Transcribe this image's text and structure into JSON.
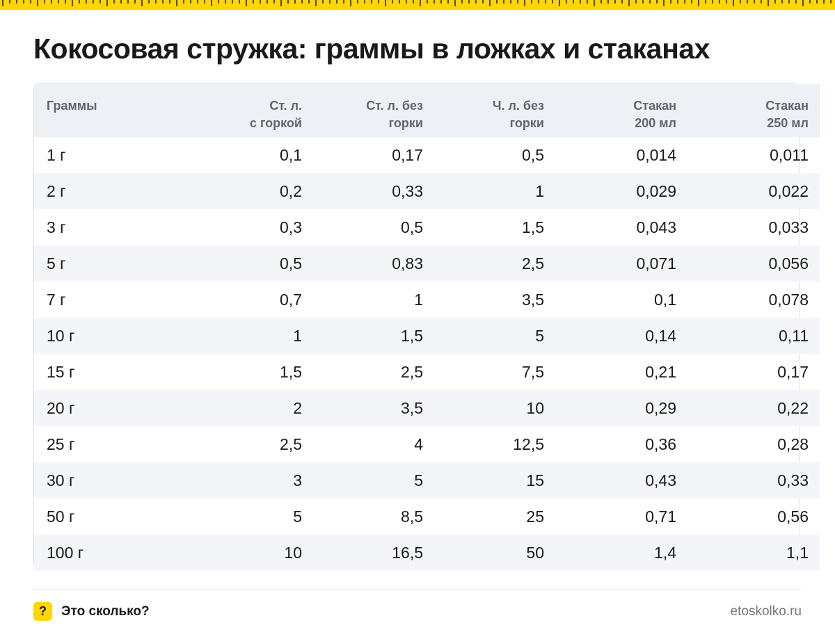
{
  "title": "Кокосовая стружка: граммы в ложках и стаканах",
  "colors": {
    "accent": "#ffd600",
    "header_bg": "#edf0f4",
    "row_alt": "#f3f5f8"
  },
  "table": {
    "headers": [
      {
        "line1": "Граммы",
        "line2": ""
      },
      {
        "line1": "Ст. л.",
        "line2": "с горкой"
      },
      {
        "line1": "Ст. л. без",
        "line2": "горки"
      },
      {
        "line1": "Ч. л. без",
        "line2": "горки"
      },
      {
        "line1": "Стакан",
        "line2": "200 мл"
      },
      {
        "line1": "Стакан",
        "line2": "250 мл"
      }
    ],
    "rows": [
      [
        "1 г",
        "0,1",
        "0,17",
        "0,5",
        "0,014",
        "0,011"
      ],
      [
        "2 г",
        "0,2",
        "0,33",
        "1",
        "0,029",
        "0,022"
      ],
      [
        "3 г",
        "0,3",
        "0,5",
        "1,5",
        "0,043",
        "0,033"
      ],
      [
        "5 г",
        "0,5",
        "0,83",
        "2,5",
        "0,071",
        "0,056"
      ],
      [
        "7 г",
        "0,7",
        "1",
        "3,5",
        "0,1",
        "0,078"
      ],
      [
        "10 г",
        "1",
        "1,5",
        "5",
        "0,14",
        "0,11"
      ],
      [
        "15 г",
        "1,5",
        "2,5",
        "7,5",
        "0,21",
        "0,17"
      ],
      [
        "20 г",
        "2",
        "3,5",
        "10",
        "0,29",
        "0,22"
      ],
      [
        "25 г",
        "2,5",
        "4",
        "12,5",
        "0,36",
        "0,28"
      ],
      [
        "30 г",
        "3",
        "5",
        "15",
        "0,43",
        "0,33"
      ],
      [
        "50 г",
        "5",
        "8,5",
        "25",
        "0,71",
        "0,56"
      ],
      [
        "100 г",
        "10",
        "16,5",
        "50",
        "1,4",
        "1,1"
      ]
    ]
  },
  "footer": {
    "badge_glyph": "?",
    "brand": "Это сколько?",
    "site": "etoskolko.ru"
  }
}
